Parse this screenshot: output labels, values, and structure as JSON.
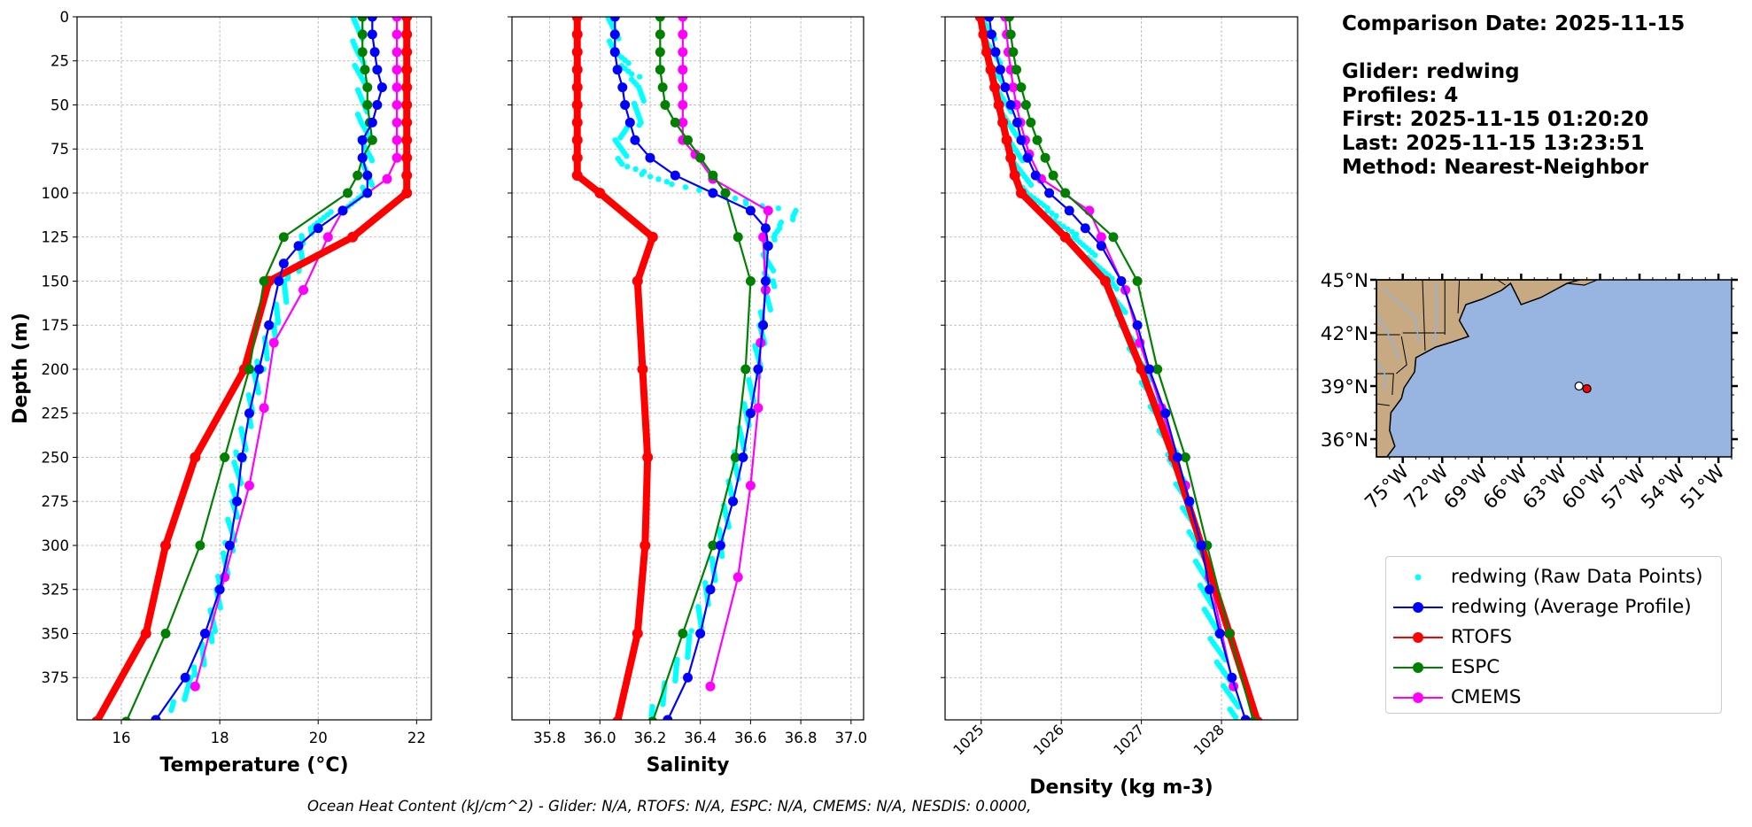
{
  "info": {
    "comparison_date": "Comparison Date: 2025-11-15",
    "glider": "Glider: redwing",
    "profiles": "Profiles: 4",
    "first": "First: 2025-11-15 01:20:20",
    "last": "Last: 2025-11-15 13:23:51",
    "method": "Method: Nearest-Neighbor"
  },
  "footer": "Ocean Heat Content (kJ/cm^2) - Glider: N/A,  RTOFS: N/A,  ESPC: N/A,  CMEMS: N/A,  NESDIS: 0.0000,",
  "colors": {
    "raw": "#00ffff",
    "avg": "#0000ff",
    "rtofs": "#ff0000",
    "espc": "#008000",
    "cmems": "#ff00ff",
    "land": "#c8aa82",
    "ocean": "#98b4e0"
  },
  "legend": [
    {
      "label": "redwing (Raw Data Points)",
      "key": "raw"
    },
    {
      "label": "redwing (Average Profile)",
      "key": "avg"
    },
    {
      "label": "RTOFS",
      "key": "rtofs"
    },
    {
      "label": "ESPC",
      "key": "espc"
    },
    {
      "label": "CMEMS",
      "key": "cmems"
    }
  ],
  "chart_data": [
    {
      "type": "line",
      "xlabel": "Temperature (°C)",
      "ylabel": "Depth (m)",
      "xlim": [
        15.1,
        22.3
      ],
      "ylim": [
        399,
        0
      ],
      "grid": true,
      "xticks": [
        16,
        18,
        20,
        22
      ],
      "xtick_labels": [
        "16",
        "18",
        "20",
        "22"
      ],
      "yticks": [
        0,
        25,
        50,
        75,
        100,
        125,
        150,
        175,
        200,
        225,
        250,
        275,
        300,
        325,
        350,
        375
      ],
      "series": [
        {
          "name": "redwing (Raw Data Points)",
          "key": "raw",
          "style": "raw",
          "depth": [
            0,
            20,
            40,
            60,
            80,
            100,
            120,
            130,
            140,
            150,
            175,
            200,
            225,
            250,
            275,
            300,
            325,
            350,
            375,
            395
          ],
          "values": [
            20.8,
            20.8,
            20.9,
            20.9,
            21.0,
            21.0,
            19.8,
            19.7,
            19.6,
            19.4,
            19.1,
            18.8,
            18.6,
            18.4,
            18.3,
            18.2,
            18.0,
            17.8,
            17.5,
            17.0
          ]
        },
        {
          "name": "redwing (Average Profile)",
          "key": "avg",
          "style": "avg",
          "depth": [
            0,
            10,
            20,
            30,
            40,
            50,
            60,
            70,
            80,
            90,
            100,
            110,
            120,
            130,
            140,
            150,
            175,
            200,
            225,
            250,
            275,
            300,
            325,
            350,
            375,
            399
          ],
          "values": [
            21.1,
            21.1,
            21.15,
            21.2,
            21.3,
            21.2,
            21.1,
            20.9,
            20.9,
            21.0,
            21.0,
            20.5,
            20.0,
            19.6,
            19.3,
            19.2,
            19.0,
            18.8,
            18.6,
            18.45,
            18.35,
            18.2,
            18.0,
            17.7,
            17.3,
            16.7
          ]
        },
        {
          "name": "RTOFS",
          "key": "rtofs",
          "style": "thick",
          "depth": [
            0,
            10,
            20,
            30,
            40,
            50,
            60,
            70,
            80,
            90,
            100,
            125,
            150,
            200,
            250,
            300,
            350,
            400
          ],
          "values": [
            21.8,
            21.8,
            21.8,
            21.8,
            21.8,
            21.8,
            21.8,
            21.8,
            21.8,
            21.8,
            21.8,
            20.7,
            19.0,
            18.5,
            17.5,
            16.9,
            16.5,
            15.5
          ]
        },
        {
          "name": "ESPC",
          "key": "espc",
          "style": "line",
          "depth": [
            0,
            10,
            20,
            30,
            40,
            50,
            60,
            70,
            80,
            90,
            100,
            125,
            150,
            200,
            250,
            300,
            350,
            400
          ],
          "values": [
            20.9,
            20.9,
            20.9,
            20.95,
            21.0,
            21.0,
            21.05,
            21.1,
            20.9,
            20.8,
            20.6,
            19.3,
            18.9,
            18.6,
            18.1,
            17.6,
            16.9,
            16.1
          ]
        },
        {
          "name": "CMEMS",
          "key": "cmems",
          "style": "line",
          "depth": [
            0,
            10,
            20,
            30,
            40,
            50,
            60,
            70,
            80,
            92,
            110,
            125,
            155,
            185,
            222,
            266,
            318,
            380
          ],
          "values": [
            21.6,
            21.6,
            21.6,
            21.6,
            21.6,
            21.6,
            21.6,
            21.6,
            21.6,
            21.4,
            20.5,
            20.2,
            19.7,
            19.1,
            18.9,
            18.6,
            18.1,
            17.5
          ]
        }
      ]
    },
    {
      "type": "line",
      "xlabel": "Salinity",
      "ylim": [
        399,
        0
      ],
      "xlim": [
        35.65,
        37.05
      ],
      "grid": true,
      "xticks": [
        35.8,
        36.0,
        36.2,
        36.4,
        36.6,
        36.8,
        37.0
      ],
      "xtick_labels": [
        "35.8",
        "36.0",
        "36.2",
        "36.4",
        "36.6",
        "36.8",
        "37.0"
      ],
      "series": [
        {
          "name": "redwing (Raw Data Points)",
          "key": "raw",
          "style": "raw",
          "depth": [
            0,
            20,
            34,
            40,
            60,
            70,
            85,
            95,
            100,
            106,
            110,
            115,
            120,
            125,
            135,
            150,
            175,
            200,
            250,
            300,
            350,
            399
          ],
          "values": [
            36.05,
            36.06,
            36.14,
            36.16,
            36.15,
            36.07,
            36.1,
            36.3,
            36.45,
            36.6,
            36.78,
            36.75,
            36.72,
            36.68,
            36.66,
            36.68,
            36.65,
            36.62,
            36.55,
            36.48,
            36.38,
            36.2
          ]
        },
        {
          "name": "redwing (Average Profile)",
          "key": "avg",
          "style": "avg",
          "depth": [
            0,
            10,
            20,
            30,
            40,
            50,
            60,
            70,
            80,
            90,
            100,
            110,
            120,
            130,
            150,
            175,
            200,
            225,
            250,
            275,
            300,
            325,
            350,
            375,
            399
          ],
          "values": [
            36.06,
            36.06,
            36.06,
            36.07,
            36.09,
            36.1,
            36.12,
            36.14,
            36.2,
            36.3,
            36.45,
            36.6,
            36.66,
            36.67,
            36.66,
            36.65,
            36.63,
            36.6,
            36.57,
            36.53,
            36.48,
            36.44,
            36.4,
            36.35,
            36.27
          ]
        },
        {
          "name": "RTOFS",
          "key": "rtofs",
          "style": "thick",
          "depth": [
            0,
            10,
            20,
            30,
            40,
            50,
            60,
            70,
            80,
            90,
            100,
            125,
            150,
            200,
            250,
            300,
            350,
            400
          ],
          "values": [
            35.91,
            35.91,
            35.91,
            35.91,
            35.91,
            35.91,
            35.91,
            35.91,
            35.91,
            35.91,
            36.0,
            36.21,
            36.15,
            36.17,
            36.19,
            36.18,
            36.15,
            36.07
          ]
        },
        {
          "name": "ESPC",
          "key": "espc",
          "style": "line",
          "depth": [
            0,
            10,
            20,
            30,
            40,
            50,
            60,
            70,
            80,
            90,
            100,
            125,
            150,
            200,
            250,
            300,
            350,
            400
          ],
          "values": [
            36.24,
            36.24,
            36.24,
            36.24,
            36.25,
            36.26,
            36.3,
            36.35,
            36.4,
            36.45,
            36.5,
            36.55,
            36.6,
            36.58,
            36.54,
            36.45,
            36.33,
            36.21
          ]
        },
        {
          "name": "CMEMS",
          "key": "cmems",
          "style": "line",
          "depth": [
            0,
            10,
            20,
            30,
            40,
            50,
            60,
            70,
            78,
            92,
            110,
            125,
            155,
            185,
            222,
            266,
            318,
            380
          ],
          "values": [
            36.33,
            36.33,
            36.33,
            36.33,
            36.33,
            36.33,
            36.33,
            36.33,
            36.38,
            36.45,
            36.67,
            36.65,
            36.66,
            36.64,
            36.63,
            36.6,
            36.55,
            36.44
          ]
        }
      ]
    },
    {
      "type": "line",
      "xlabel": "Density (kg m-3)",
      "ylim": [
        399,
        0
      ],
      "xlim": [
        1024.55,
        1028.95
      ],
      "grid": true,
      "xticks": [
        1025,
        1026,
        1027,
        1028
      ],
      "xtick_labels": [
        "1025",
        "1026",
        "1027",
        "1028"
      ],
      "series": [
        {
          "name": "redwing (Raw Data Points)",
          "key": "raw",
          "style": "raw",
          "depth": [
            0,
            20,
            40,
            60,
            80,
            100,
            110,
            125,
            150,
            175,
            200,
            250,
            300,
            350,
            399
          ],
          "values": [
            1025.05,
            1025.15,
            1025.25,
            1025.35,
            1025.45,
            1025.6,
            1025.8,
            1026.2,
            1026.6,
            1026.8,
            1027.0,
            1027.4,
            1027.7,
            1027.9,
            1028.2
          ]
        },
        {
          "name": "redwing (Average Profile)",
          "key": "avg",
          "style": "avg",
          "depth": [
            0,
            10,
            20,
            30,
            40,
            50,
            60,
            70,
            80,
            90,
            100,
            110,
            120,
            130,
            150,
            175,
            200,
            225,
            250,
            275,
            300,
            325,
            350,
            375,
            399
          ],
          "values": [
            1025.1,
            1025.13,
            1025.18,
            1025.24,
            1025.3,
            1025.37,
            1025.45,
            1025.5,
            1025.58,
            1025.68,
            1025.85,
            1026.1,
            1026.3,
            1026.5,
            1026.75,
            1026.95,
            1027.1,
            1027.3,
            1027.45,
            1027.6,
            1027.75,
            1027.85,
            1027.98,
            1028.13,
            1028.3
          ]
        },
        {
          "name": "RTOFS",
          "key": "rtofs",
          "style": "thick",
          "depth": [
            0,
            10,
            20,
            30,
            40,
            50,
            60,
            70,
            80,
            90,
            100,
            125,
            150,
            200,
            250,
            300,
            350,
            400
          ],
          "values": [
            1024.99,
            1025.03,
            1025.07,
            1025.12,
            1025.17,
            1025.22,
            1025.27,
            1025.32,
            1025.37,
            1025.42,
            1025.5,
            1026.05,
            1026.55,
            1027.0,
            1027.4,
            1027.75,
            1028.1,
            1028.45
          ]
        },
        {
          "name": "ESPC",
          "key": "espc",
          "style": "line",
          "depth": [
            0,
            10,
            20,
            30,
            40,
            50,
            60,
            70,
            80,
            90,
            100,
            125,
            150,
            200,
            250,
            300,
            350,
            400
          ],
          "values": [
            1025.35,
            1025.37,
            1025.4,
            1025.44,
            1025.5,
            1025.56,
            1025.62,
            1025.7,
            1025.8,
            1025.9,
            1026.05,
            1026.65,
            1026.95,
            1027.2,
            1027.55,
            1027.82,
            1028.1,
            1028.4
          ]
        },
        {
          "name": "CMEMS",
          "key": "cmems",
          "style": "line",
          "depth": [
            0,
            10,
            20,
            30,
            40,
            50,
            60,
            70,
            78,
            92,
            110,
            125,
            155,
            185,
            222,
            266,
            318,
            380
          ],
          "values": [
            1025.3,
            1025.32,
            1025.34,
            1025.37,
            1025.4,
            1025.44,
            1025.49,
            1025.55,
            1025.6,
            1025.75,
            1026.35,
            1026.5,
            1026.8,
            1026.98,
            1027.25,
            1027.55,
            1027.85,
            1028.15
          ]
        }
      ]
    },
    {
      "type": "map",
      "lon_range": [
        -77,
        -50
      ],
      "lat_range": [
        35,
        45
      ],
      "xtick_labels": [
        "75°W",
        "72°W",
        "69°W",
        "66°W",
        "63°W",
        "60°W",
        "57°W",
        "54°W",
        "51°W"
      ],
      "xtick_values": [
        -75,
        -72,
        -69,
        -66,
        -63,
        -60,
        -57,
        -54,
        -51
      ],
      "ytick_labels": [
        "45°N",
        "42°N",
        "39°N",
        "36°N"
      ],
      "ytick_values": [
        45,
        42,
        39,
        36
      ],
      "points": [
        {
          "lon": -61.6,
          "lat": 39.0,
          "color": "white"
        },
        {
          "lon": -61.0,
          "lat": 38.85,
          "color": "red"
        }
      ]
    }
  ]
}
